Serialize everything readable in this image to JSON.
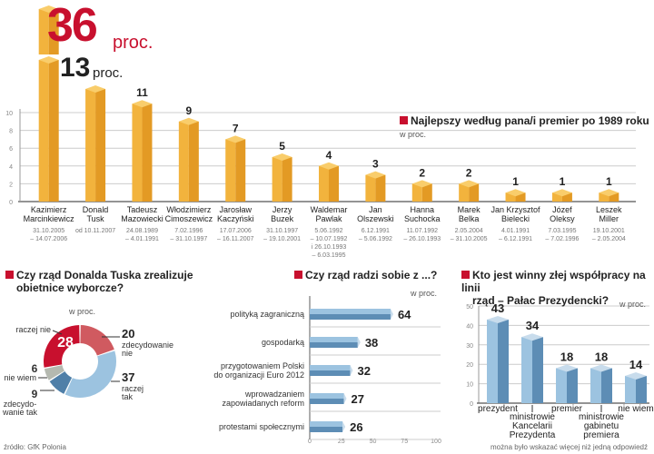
{
  "colors": {
    "accent": "#c8102e",
    "bar_orange": "#f2b33d",
    "bar_orange_dark": "#e39a24",
    "bar_blue": "#9cc3e0",
    "bar_blue_dark": "#5d8db5",
    "grid": "#cccccc"
  },
  "chart_data": [
    {
      "type": "bar",
      "title": "Najlepszy według pana/i premier po 1989 roku",
      "unit_label": "w proc.",
      "ylim": [
        0,
        10
      ],
      "yticks": [
        "0",
        "2",
        "4",
        "6",
        "8",
        "10"
      ],
      "highlight": {
        "first": {
          "value": "36",
          "unit": "proc."
        },
        "second": {
          "value": "13",
          "unit": "proc."
        }
      },
      "categories": [
        {
          "name1": "Kazimierz",
          "name2": "Marcinkiewicz",
          "dates": [
            "31.10.2005",
            "– 14.07.2006"
          ]
        },
        {
          "name1": "Donald",
          "name2": "Tusk",
          "dates": [
            "od 10.11.2007"
          ]
        },
        {
          "name1": "Tadeusz",
          "name2": "Mazowiecki",
          "dates": [
            "24.08.1989",
            "– 4.01.1991"
          ]
        },
        {
          "name1": "Włodzimierz",
          "name2": "Cimoszewicz",
          "dates": [
            "7.02.1996",
            "– 31.10.1997"
          ]
        },
        {
          "name1": "Jarosław",
          "name2": "Kaczyński",
          "dates": [
            "17.07.2006",
            "– 16.11.2007"
          ]
        },
        {
          "name1": "Jerzy",
          "name2": "Buzek",
          "dates": [
            "31.10.1997",
            "– 19.10.2001"
          ]
        },
        {
          "name1": "Waldemar",
          "name2": "Pawlak",
          "dates": [
            "5.06.1992",
            "– 10.07.1992",
            "i 26.10.1993",
            "– 6.03.1995"
          ]
        },
        {
          "name1": "Jan",
          "name2": "Olszewski",
          "dates": [
            "6.12.1991",
            "– 5.06.1992"
          ]
        },
        {
          "name1": "Hanna",
          "name2": "Suchocka",
          "dates": [
            "11.07.1992",
            "– 26.10.1993"
          ]
        },
        {
          "name1": "Marek",
          "name2": "Belka",
          "dates": [
            "2.05.2004",
            "– 31.10.2005"
          ]
        },
        {
          "name1": "Jan Krzysztof",
          "name2": "Bielecki",
          "dates": [
            "4.01.1991",
            "– 6.12.1991"
          ]
        },
        {
          "name1": "Józef",
          "name2": "Oleksy",
          "dates": [
            "7.03.1995",
            "– 7.02.1996"
          ]
        },
        {
          "name1": "Leszek",
          "name2": "Miller",
          "dates": [
            "19.10.2001",
            "– 2.05.2004"
          ]
        }
      ],
      "values": [
        36,
        13,
        11,
        9,
        7,
        5,
        4,
        3,
        2,
        2,
        1,
        1,
        1
      ],
      "value_labels": [
        "",
        "",
        "11",
        "9",
        "7",
        "5",
        "4",
        "3",
        "2",
        "2",
        "1",
        "1",
        "1"
      ]
    },
    {
      "type": "pie",
      "title_lines": [
        "Czy rząd Donalda Tuska zrealizuje",
        "obietnice wyborcze?"
      ],
      "unit_label": "w proc.",
      "slices": [
        {
          "label": "zdecydowanie nie",
          "label_lines": [
            "zdecydowanie",
            "nie"
          ],
          "value": 20,
          "color": "#d05a60"
        },
        {
          "label": "raczej tak",
          "label_lines": [
            "raczej",
            "tak"
          ],
          "value": 37,
          "color": "#9cc3e0"
        },
        {
          "label": "zdecydowanie tak",
          "label_lines": [
            "zdecydo-",
            "wanie tak"
          ],
          "value": 9,
          "color": "#4f7fa8"
        },
        {
          "label": "nie wiem",
          "label_lines": [
            "nie wiem"
          ],
          "value": 6,
          "color": "#b5b9b0"
        },
        {
          "label": "raczej nie",
          "label_lines": [
            "raczej nie"
          ],
          "value": 28,
          "color": "#c8102e"
        }
      ]
    },
    {
      "type": "bar",
      "orientation": "horizontal",
      "title": "Czy rząd radzi sobie z ...?",
      "unit_label": "w proc.",
      "xlim": [
        0,
        100
      ],
      "xticks": [
        "0",
        "25",
        "50",
        "75",
        "100"
      ],
      "categories": [
        [
          "polityką zagraniczną"
        ],
        [
          "gospodarką"
        ],
        [
          "przygotowaniem Polski",
          "do organizacji Euro 2012"
        ],
        [
          "wprowadzaniem",
          "zapowiadanych reform"
        ],
        [
          "protestami społecznymi"
        ]
      ],
      "values": [
        64,
        38,
        32,
        27,
        26
      ]
    },
    {
      "type": "bar",
      "title_lines": [
        "Kto jest winny złej współpracy na linii",
        "rząd – Pałac Prezydencki?"
      ],
      "unit_label": "w proc.",
      "ylim": [
        0,
        50
      ],
      "yticks": [
        "0",
        "10",
        "20",
        "30",
        "40",
        "50"
      ],
      "categories": [
        [
          "prezydent"
        ],
        [
          "ministrowie",
          "Kancelarii",
          "Prezydenta"
        ],
        [
          "premier"
        ],
        [
          "ministrowie",
          "gabinetu",
          "premiera"
        ],
        [
          "nie wiem"
        ]
      ],
      "values": [
        43,
        34,
        18,
        18,
        14
      ],
      "note": "można było wskazać więcej niż jedną odpowiedź"
    }
  ],
  "source": "źródło: GfK Polonia"
}
